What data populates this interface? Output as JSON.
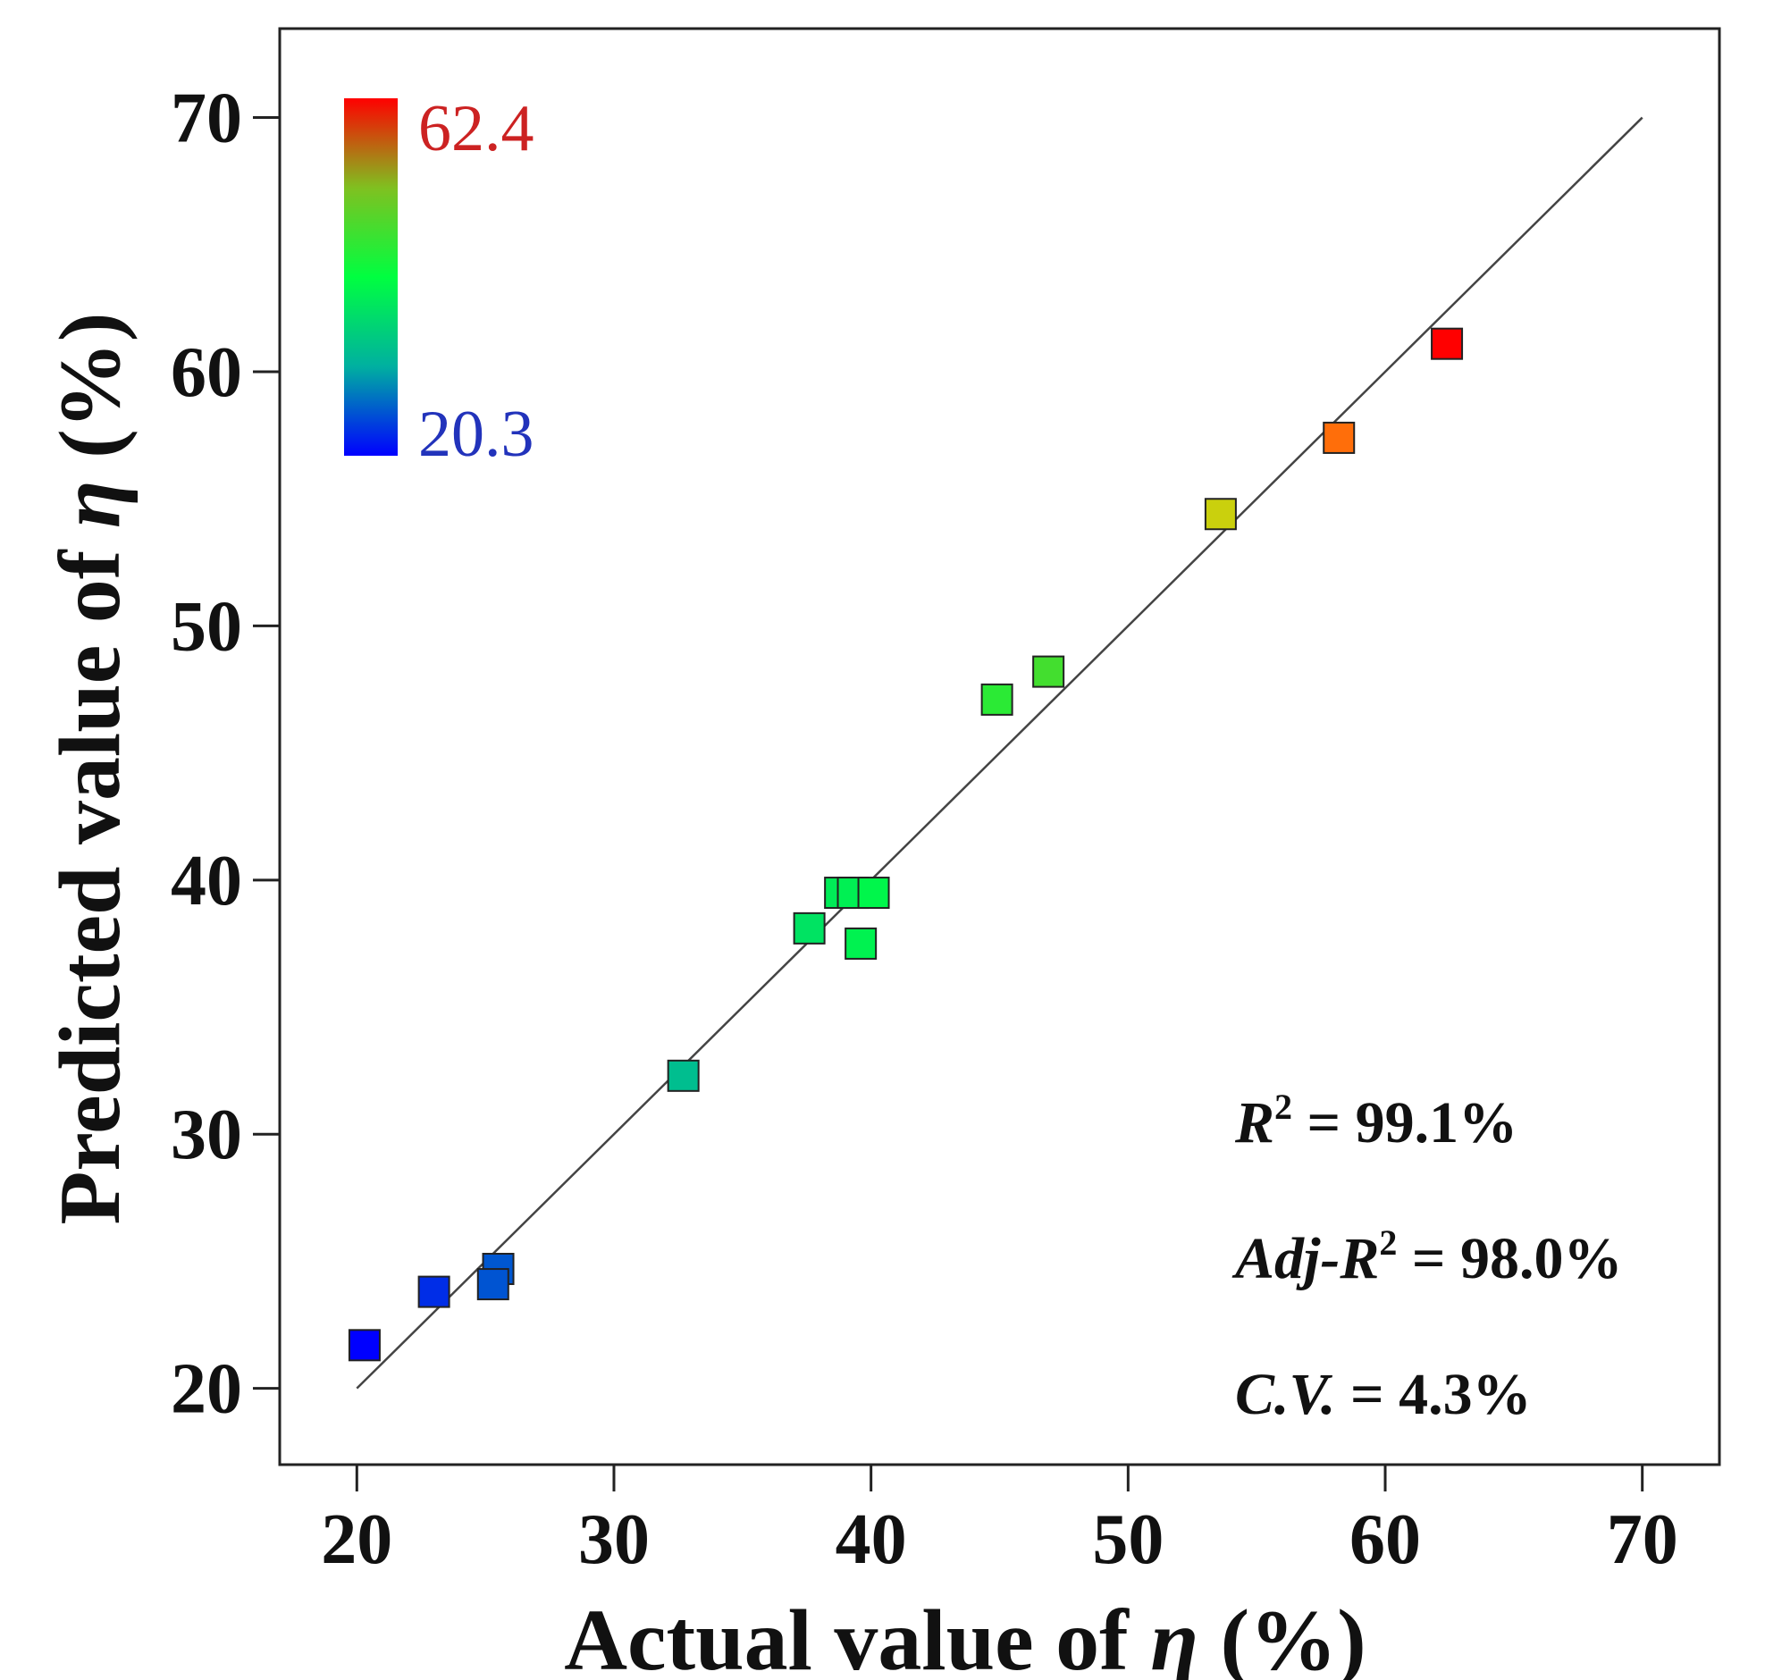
{
  "chart_data": {
    "type": "scatter",
    "xlabel_prefix": "Actual value of ",
    "xlabel_symbol": "η",
    "xlabel_suffix": " (%)",
    "ylabel_prefix": "Predicted value of ",
    "ylabel_symbol": "η",
    "ylabel_suffix": " (%)",
    "xlim": [
      17,
      73
    ],
    "ylim": [
      17,
      73.5
    ],
    "xticks": [
      "20",
      "30",
      "40",
      "50",
      "60",
      "70"
    ],
    "yticks": [
      "20",
      "30",
      "40",
      "50",
      "60",
      "70"
    ],
    "reference_line": {
      "from": [
        20,
        20
      ],
      "to": [
        70,
        70
      ]
    },
    "points": [
      {
        "x": 20.3,
        "y": 21.7
      },
      {
        "x": 23.0,
        "y": 23.8
      },
      {
        "x": 25.5,
        "y": 24.7
      },
      {
        "x": 25.3,
        "y": 24.1
      },
      {
        "x": 32.7,
        "y": 32.3
      },
      {
        "x": 37.6,
        "y": 38.1
      },
      {
        "x": 38.8,
        "y": 39.5
      },
      {
        "x": 39.3,
        "y": 39.5
      },
      {
        "x": 40.1,
        "y": 39.5
      },
      {
        "x": 39.6,
        "y": 37.5
      },
      {
        "x": 44.9,
        "y": 47.1
      },
      {
        "x": 46.9,
        "y": 48.2
      },
      {
        "x": 53.6,
        "y": 54.4
      },
      {
        "x": 58.2,
        "y": 57.4
      },
      {
        "x": 62.4,
        "y": 61.1
      }
    ],
    "colorbar": {
      "min_label": "20.3",
      "max_label": "62.4",
      "min": 20.3,
      "max": 62.4,
      "min_color": "#2233bb",
      "max_color": "#cc2222"
    },
    "stats": {
      "r2_symbol": "R",
      "r2_sup": "2",
      "r2_value": " = 99.1%",
      "adj_prefix": "Adj-R",
      "adj_sup": "2",
      "adj_value": " = 98.0%",
      "cv_symbol": "C.V.",
      "cv_value": " = 4.3%"
    }
  }
}
